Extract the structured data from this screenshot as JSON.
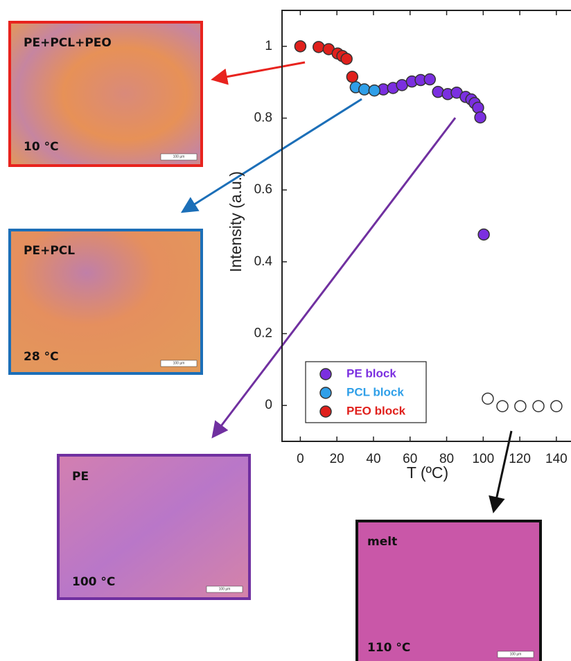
{
  "chart_data": {
    "type": "scatter",
    "x_label": "T (ºC)",
    "y_label": "Intensity (a.u.)",
    "xlim": [
      -10,
      148
    ],
    "ylim": [
      -0.1,
      1.1
    ],
    "xticks": [
      0,
      20,
      40,
      60,
      80,
      100,
      120,
      140
    ],
    "yticks": [
      0,
      0.2,
      0.4,
      0.6,
      0.8,
      1
    ],
    "series": [
      {
        "name": "PE block",
        "color": "#7b2fe0",
        "x": [
          45.4,
          50.7,
          55.6,
          61,
          65.8,
          70.8,
          75.3,
          80.6,
          85.5,
          90.4,
          93.5,
          95.3,
          97.2,
          98.4,
          100.3
        ],
        "values": [
          0.88,
          0.884,
          0.892,
          0.902,
          0.906,
          0.908,
          0.873,
          0.867,
          0.871,
          0.859,
          0.852,
          0.842,
          0.829,
          0.802,
          0.476
        ]
      },
      {
        "name": "PCL block",
        "color": "#2f9fe8",
        "x": [
          30.3,
          35,
          40.5
        ],
        "values": [
          0.886,
          0.88,
          0.877
        ]
      },
      {
        "name": "PEO block",
        "color": "#e0201c",
        "x": [
          0,
          10,
          15.5,
          20.4,
          23,
          25.3,
          28.4
        ],
        "values": [
          1.0,
          0.998,
          0.992,
          0.98,
          0.973,
          0.965,
          0.915
        ]
      },
      {
        "color": "#ffffff",
        "x": [
          102.5,
          110.5,
          120.3,
          130.2,
          140
        ],
        "values": [
          0.019,
          -0.002,
          -0.002,
          -0.002,
          -0.002
        ]
      }
    ]
  },
  "panels": [
    {
      "label": "PE+PCL+PEO",
      "temperature": "10 °C",
      "scale": "100 µm"
    },
    {
      "label": "PE+PCL",
      "temperature": "28 °C",
      "scale": "100 µm"
    },
    {
      "label": "PE",
      "temperature": "100 °C",
      "scale": "100 µm"
    },
    {
      "label": "melt",
      "temperature": "110 °C",
      "scale": "100 µm"
    }
  ]
}
